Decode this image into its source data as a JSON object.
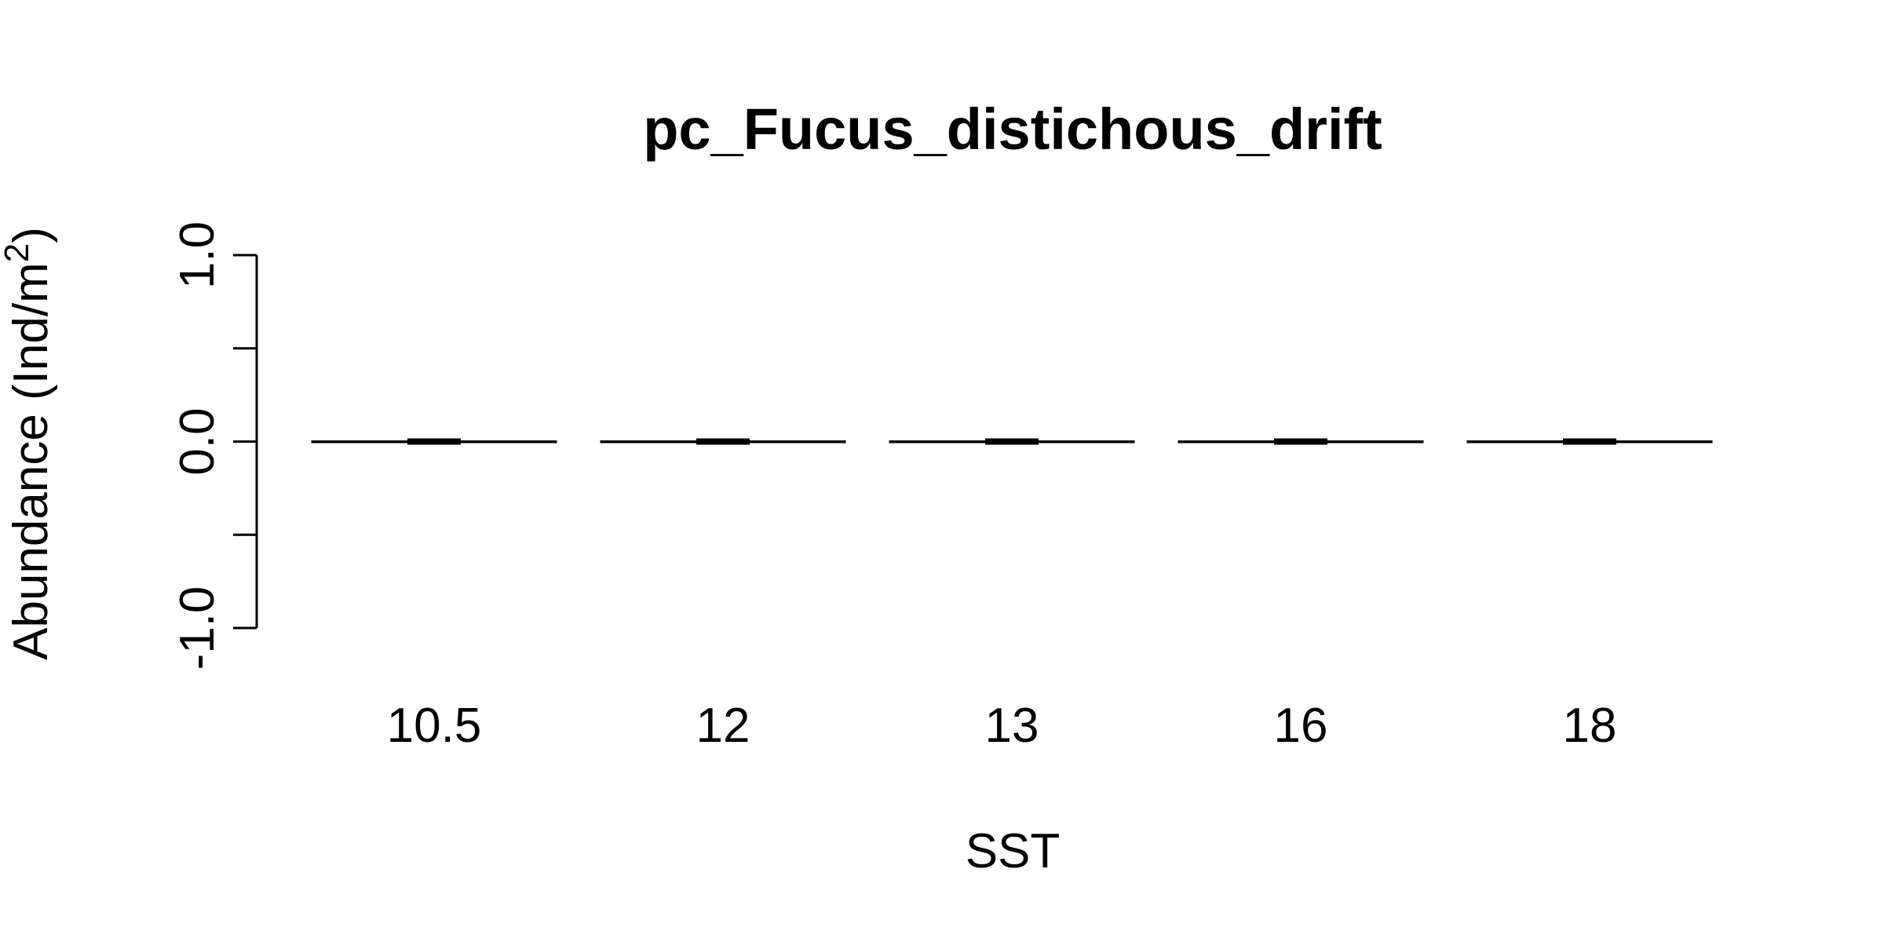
{
  "chart_data": {
    "type": "boxplot",
    "title": "pc_Fucus_distichous_drift",
    "xlabel": "SST",
    "ylabel_main": "Abundance (Ind/m",
    "ylabel_sup": "2",
    "ylabel_close": ")",
    "categories": [
      "10.5",
      "12",
      "13",
      "16",
      "18"
    ],
    "ylim": [
      -1.0,
      1.0
    ],
    "yticks": [
      -1.0,
      -0.5,
      0.0,
      0.5,
      1.0
    ],
    "ytick_labels": [
      "-1.0",
      "",
      "0.0",
      "",
      "1.0"
    ],
    "series": [
      {
        "boxes": [
          {
            "category": "10.5",
            "min": 0,
            "q1": 0,
            "median": 0,
            "q3": 0,
            "max": 0
          },
          {
            "category": "12",
            "min": 0,
            "q1": 0,
            "median": 0,
            "q3": 0,
            "max": 0
          },
          {
            "category": "13",
            "min": 0,
            "q1": 0,
            "median": 0,
            "q3": 0,
            "max": 0
          },
          {
            "category": "16",
            "min": 0,
            "q1": 0,
            "median": 0,
            "q3": 0,
            "max": 0
          },
          {
            "category": "18",
            "min": 0,
            "q1": 0,
            "median": 0,
            "q3": 0,
            "max": 0
          }
        ]
      }
    ],
    "grid": false,
    "legend": "none"
  }
}
